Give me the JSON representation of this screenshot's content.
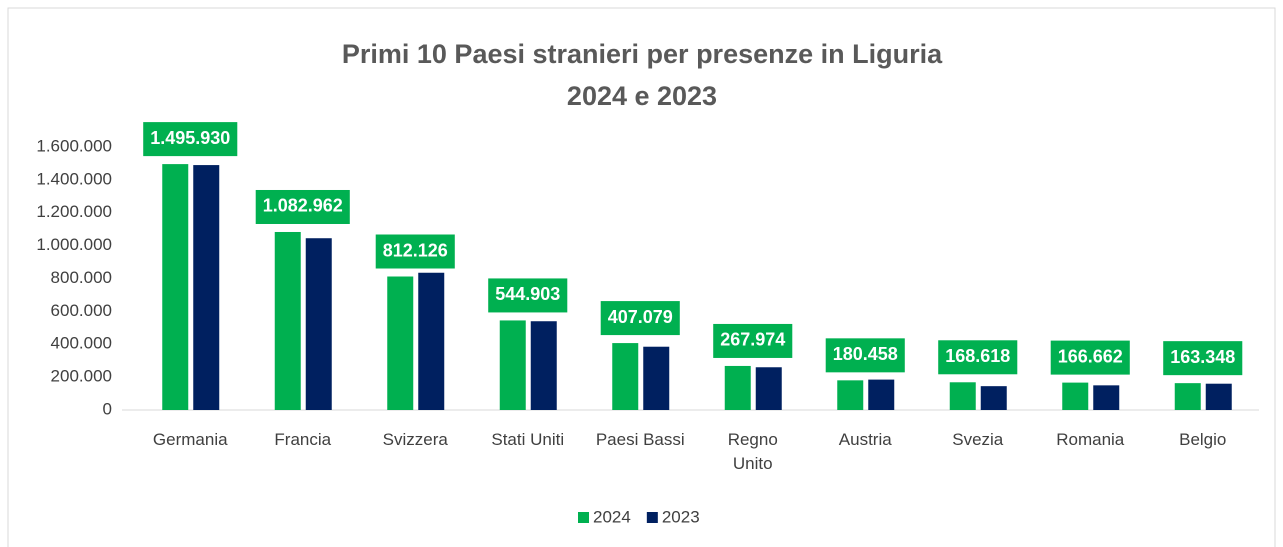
{
  "chart_data": {
    "type": "bar",
    "title": "Primi 10 Paesi stranieri per presenze in Liguria",
    "subtitle": "2024 e 2023",
    "categories": [
      "Germania",
      "Francia",
      "Svizzera",
      "Stati Uniti",
      "Paesi Bassi",
      "Regno Unito",
      "Austria",
      "Svezia",
      "Romania",
      "Belgio"
    ],
    "series": [
      {
        "name": "2024",
        "color": "#00b050",
        "values": [
          1495930,
          1082962,
          812126,
          544903,
          407079,
          267974,
          180458,
          168618,
          166662,
          163348
        ],
        "value_labels": [
          "1.495.930",
          "1.082.962",
          "812.126",
          "544.903",
          "407.079",
          "267.974",
          "180.458",
          "168.618",
          "166.662",
          "163.348"
        ]
      },
      {
        "name": "2023",
        "color": "#002060",
        "values": [
          1490000,
          1045000,
          835000,
          540000,
          385000,
          260000,
          185000,
          145000,
          150000,
          160000
        ]
      }
    ],
    "ylim": [
      0,
      1600000
    ],
    "yticks": [
      0,
      {
        "value": 200000,
        "label": "200.000"
      },
      {
        "value": 400000,
        "label": "400.000"
      },
      {
        "value": 600000,
        "label": "600.000"
      },
      {
        "value": 800000,
        "label": "800.000"
      },
      {
        "value": 1000000,
        "label": "1.000.000"
      },
      {
        "value": 1200000,
        "label": "1.200.000"
      },
      {
        "value": 1400000,
        "label": "1.400.000"
      },
      {
        "value": 1600000,
        "label": "1.600.000"
      }
    ],
    "grid": false,
    "legend": "bottom"
  }
}
